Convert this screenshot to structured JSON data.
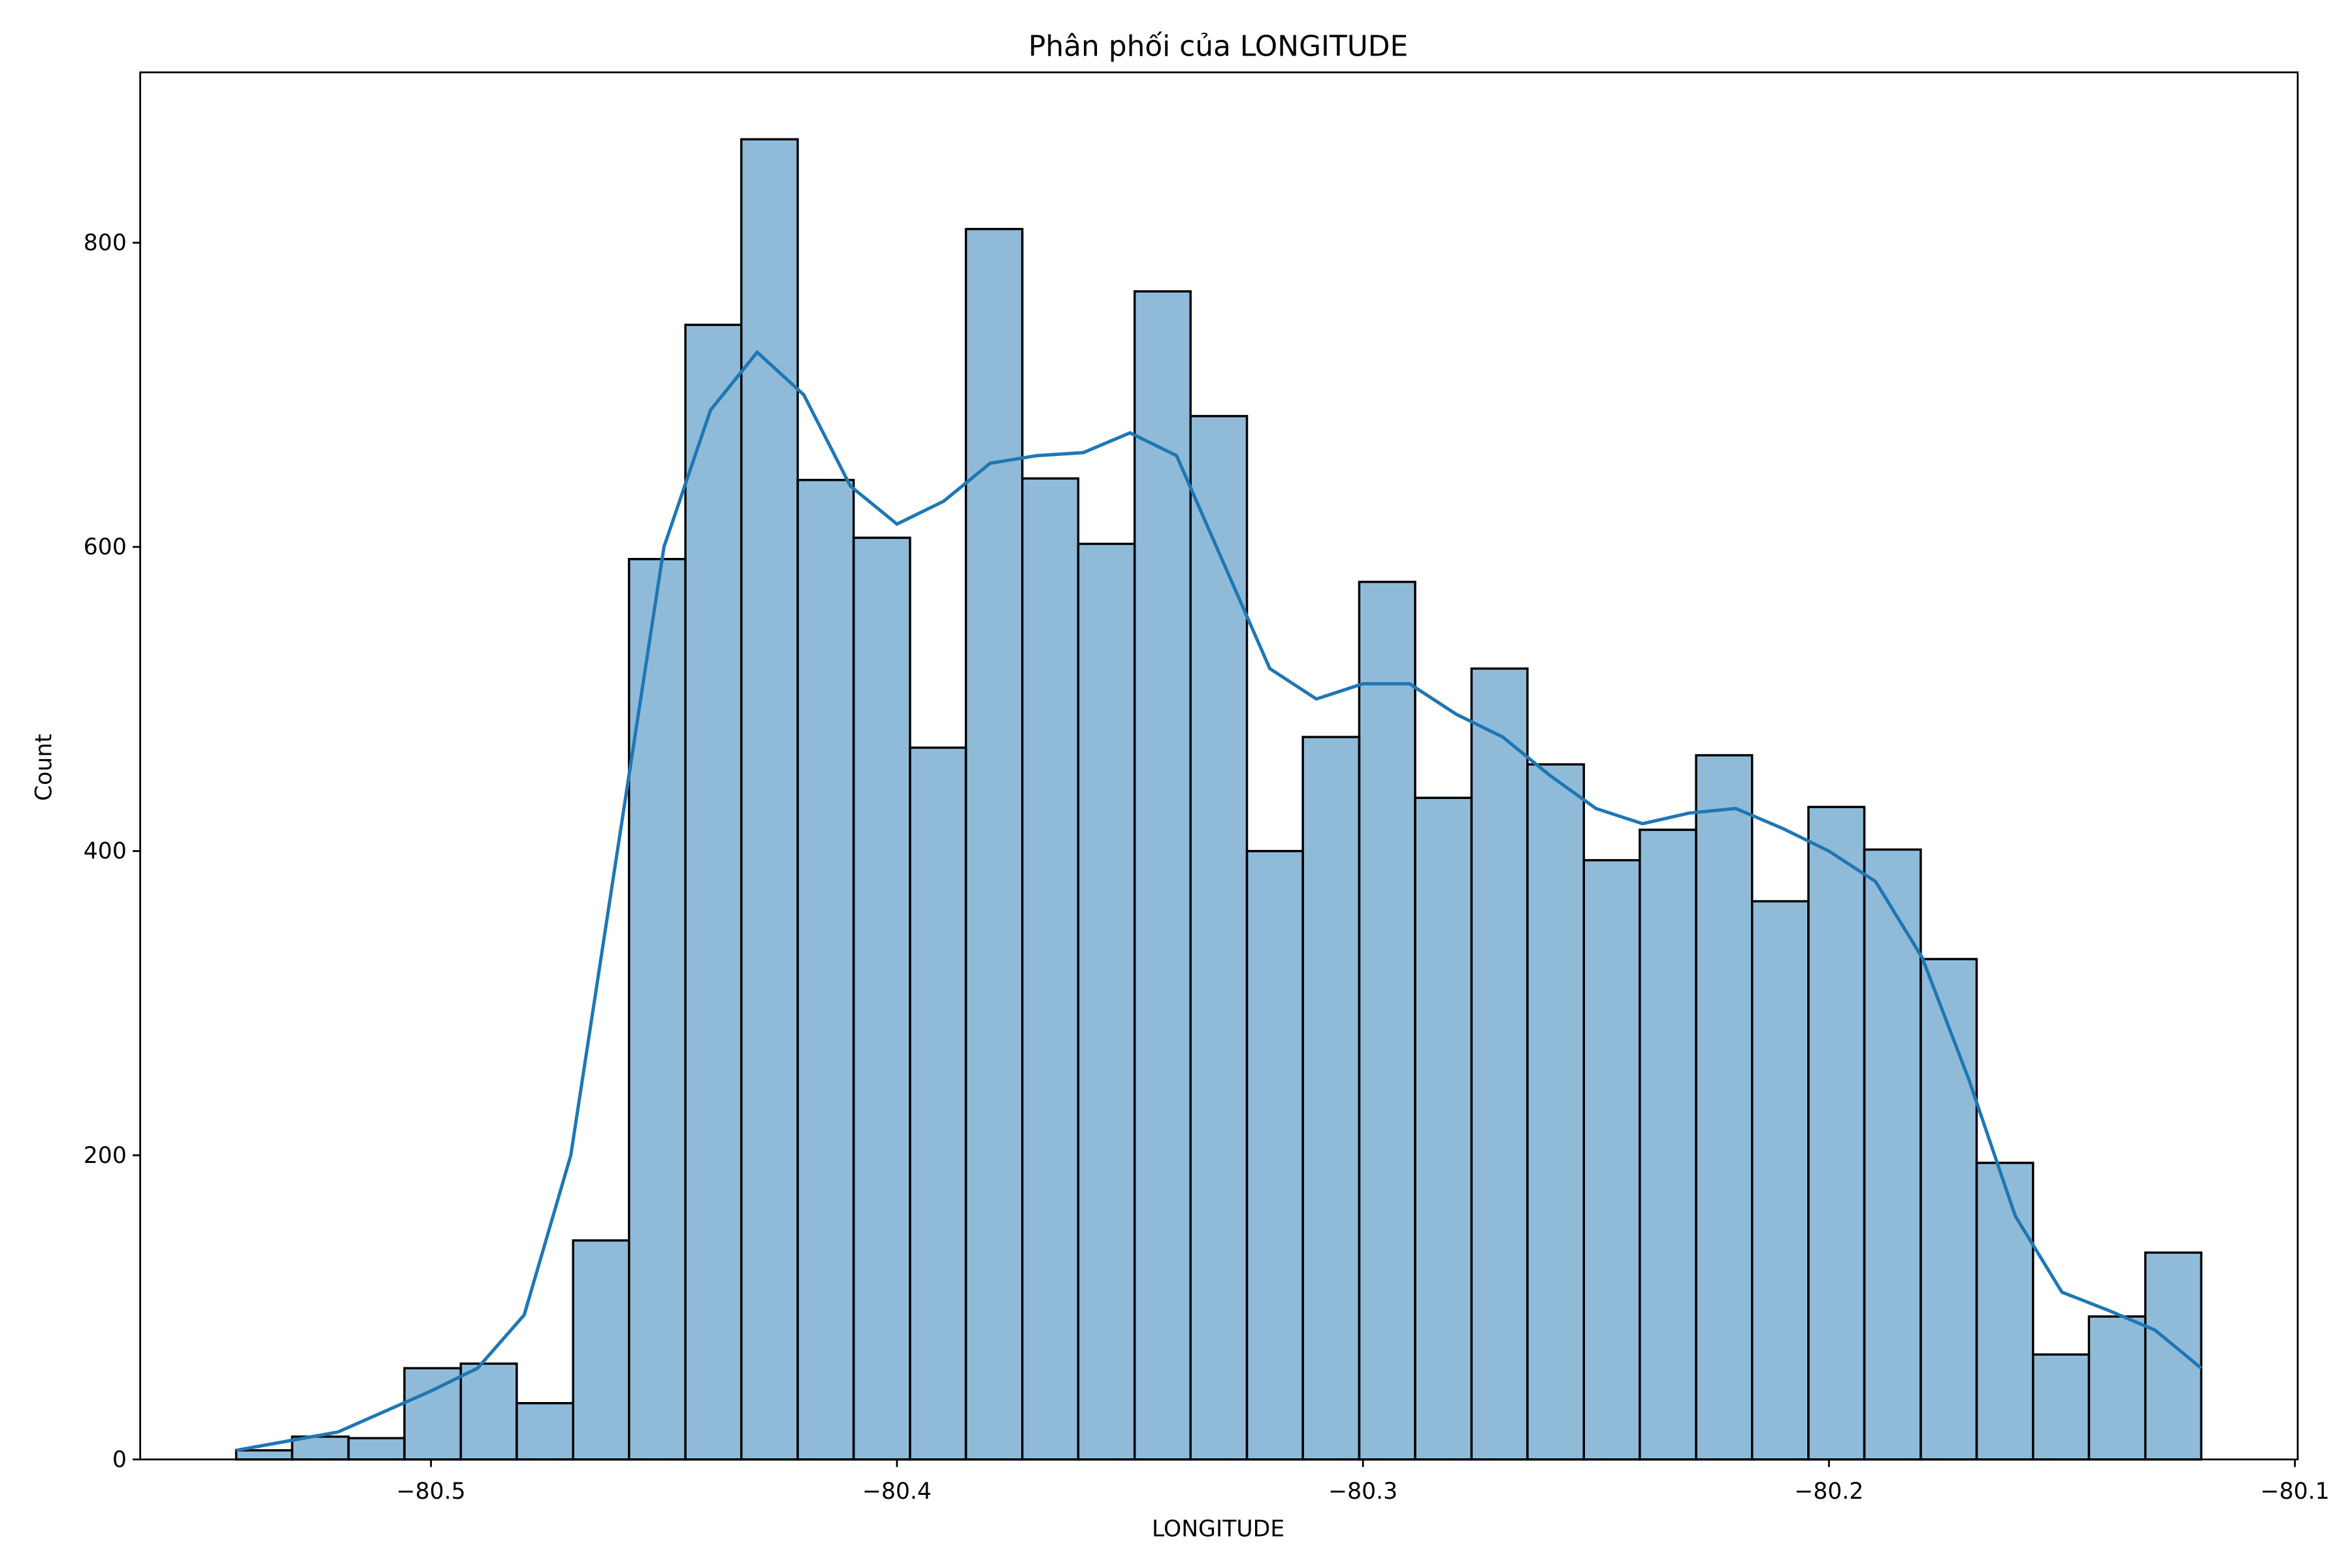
{
  "chart_data": {
    "type": "histogram",
    "title": "Phân phối của LONGITUDE",
    "xlabel": "LONGITUDE",
    "ylabel": "Count",
    "bins": [
      -80.5418,
      -80.5298,
      -80.5177,
      -80.5057,
      -80.4936,
      -80.4816,
      -80.4695,
      -80.4575,
      -80.4454,
      -80.4334,
      -80.4213,
      -80.4093,
      -80.3972,
      -80.3852,
      -80.3731,
      -80.3611,
      -80.349,
      -80.337,
      -80.3249,
      -80.3129,
      -80.3008,
      -80.2888,
      -80.2767,
      -80.2647,
      -80.2526,
      -80.2406,
      -80.2285,
      -80.2165,
      -80.2044,
      -80.1924,
      -80.1803,
      -80.1683,
      -80.1562,
      -80.1442,
      -80.1321,
      -80.1201
    ],
    "values": [
      6,
      15,
      14,
      60,
      63,
      37,
      144,
      592,
      746,
      868,
      644,
      606,
      468,
      809,
      645,
      602,
      768,
      686,
      400,
      475,
      577,
      435,
      520,
      457,
      394,
      414,
      463,
      367,
      429,
      401,
      329,
      195,
      69,
      94,
      136
    ],
    "color": "#1f77b4",
    "kde": {
      "color": "#1f77b4",
      "x": [
        -80.5418,
        -80.52,
        -80.5,
        -80.49,
        -80.48,
        -80.47,
        -80.46,
        -80.45,
        -80.44,
        -80.43,
        -80.42,
        -80.41,
        -80.4,
        -80.39,
        -80.38,
        -80.37,
        -80.36,
        -80.35,
        -80.34,
        -80.33,
        -80.32,
        -80.31,
        -80.3,
        -80.29,
        -80.28,
        -80.27,
        -80.26,
        -80.25,
        -80.24,
        -80.23,
        -80.22,
        -80.21,
        -80.2,
        -80.19,
        -80.18,
        -80.17,
        -80.16,
        -80.15,
        -80.14,
        -80.13,
        -80.1201
      ],
      "values": [
        6,
        18,
        45,
        60,
        95,
        200,
        400,
        600,
        690,
        728,
        700,
        640,
        615,
        630,
        655,
        660,
        662,
        675,
        660,
        590,
        520,
        500,
        510,
        510,
        490,
        475,
        450,
        428,
        418,
        425,
        428,
        415,
        400,
        380,
        330,
        250,
        160,
        110,
        98,
        85,
        60
      ]
    },
    "xlim": [
      -80.5624,
      -80.0994
    ],
    "ylim": [
      0,
      912
    ],
    "xticks": [
      {
        "value": -80.5,
        "label": "−80.5"
      },
      {
        "value": -80.4,
        "label": "−80.4"
      },
      {
        "value": -80.3,
        "label": "−80.3"
      },
      {
        "value": -80.2,
        "label": "−80.2"
      },
      {
        "value": -80.1,
        "label": "−80.1"
      }
    ],
    "yticks": [
      0,
      200,
      400,
      600,
      800
    ]
  }
}
